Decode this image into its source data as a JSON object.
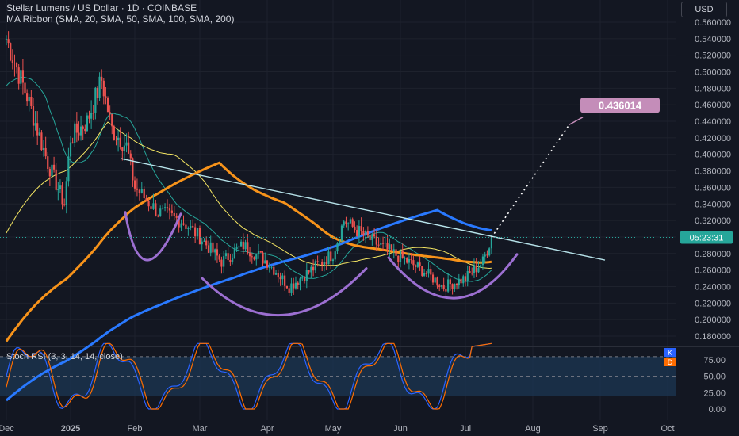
{
  "header": {
    "title": "Stellar Lumens / US Dollar · 1D · COINBASE",
    "indicator": "MA Ribbon (SMA, 20, SMA, 50, SMA, 100, SMA, 200)"
  },
  "currency_button": "USD",
  "rsi_label": "Stoch RSI (3, 3, 14, 14, close)",
  "colors": {
    "background": "#131722",
    "candle_up": "#26a69a",
    "candle_down": "#ef5350",
    "sma20": "#26a69a",
    "sma50": "#f5e663",
    "sma100": "#f7931a",
    "sma200": "#2979ff",
    "trendline": "#b7e3ea",
    "pattern_arcs": "#9c6fd1",
    "target_label": "#c48db9",
    "price_label": "#26a69a",
    "stoch_k": "#2962ff",
    "stoch_d": "#ff6d00"
  },
  "chart_data": [
    {
      "type": "candlestick",
      "title": "Stellar Lumens / US Dollar · 1D · COINBASE",
      "x_ticks": [
        "Dec",
        "2025",
        "Feb",
        "Mar",
        "Apr",
        "May",
        "Jun",
        "Jul",
        "Aug",
        "Sep",
        "Oct"
      ],
      "y_ticks": [
        "0.560000",
        "0.540000",
        "0.520000",
        "0.500000",
        "0.480000",
        "0.460000",
        "0.440000",
        "0.420000",
        "0.400000",
        "0.380000",
        "0.360000",
        "0.340000",
        "0.320000",
        "0.300000",
        "0.280000",
        "0.260000",
        "0.240000",
        "0.220000",
        "0.200000",
        "0.180000"
      ],
      "ylim": [
        0.17,
        0.57
      ],
      "current_price_timer": "05:23:31",
      "current_price": 0.2995,
      "target_label": "0.436014",
      "target_price": 0.436,
      "series": [
        {
          "name": "SMA 20",
          "color": "#26a69a"
        },
        {
          "name": "SMA 50",
          "color": "#f5e663"
        },
        {
          "name": "SMA 100",
          "color": "#f7931a"
        },
        {
          "name": "SMA 200",
          "color": "#2979ff"
        }
      ],
      "close_path": [
        [
          "Dec",
          0.54
        ],
        [
          "Dec 10",
          0.47
        ],
        [
          "Dec 20",
          0.39
        ],
        [
          "Dec 28",
          0.34
        ],
        [
          "2025",
          0.42
        ],
        [
          "Jan 8",
          0.44
        ],
        [
          "Jan 15",
          0.49
        ],
        [
          "Jan 20",
          0.43
        ],
        [
          "Jan 27",
          0.41
        ],
        [
          "Feb",
          0.36
        ],
        [
          "Feb 10",
          0.33
        ],
        [
          "Feb 20",
          0.32
        ],
        [
          "Mar",
          0.3
        ],
        [
          "Mar 10",
          0.27
        ],
        [
          "Mar 20",
          0.29
        ],
        [
          "Apr",
          0.27
        ],
        [
          "Apr 10",
          0.24
        ],
        [
          "Apr 20",
          0.26
        ],
        [
          "May",
          0.28
        ],
        [
          "May 5",
          0.32
        ],
        [
          "May 15",
          0.3
        ],
        [
          "Jun",
          0.275
        ],
        [
          "Jun 10",
          0.26
        ],
        [
          "Jun 20",
          0.24
        ],
        [
          "Jul",
          0.25
        ],
        [
          "Jul 8",
          0.27
        ],
        [
          "Jul 12",
          0.2995
        ]
      ]
    },
    {
      "type": "line",
      "title": "Stoch RSI (3, 3, 14, 14, close)",
      "y_ticks": [
        "75.00",
        "50.00",
        "25.00",
        "0.00"
      ],
      "ylim": [
        -5,
        100
      ],
      "band": [
        20,
        80
      ],
      "k_label": "K",
      "d_label": "D",
      "k_value": 100,
      "d_value": 100
    }
  ]
}
